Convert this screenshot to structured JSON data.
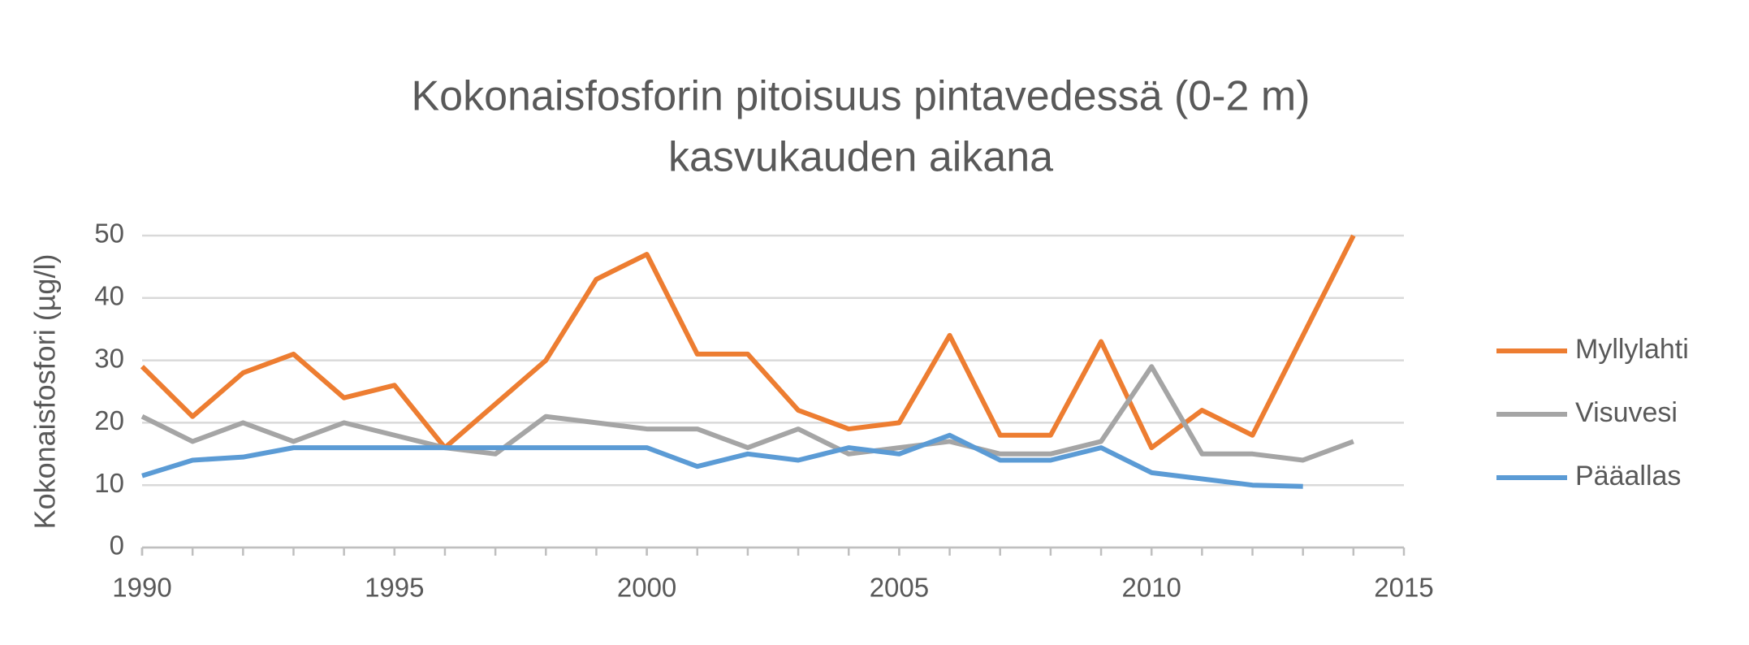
{
  "chart_data": {
    "type": "line",
    "title": [
      "Kokonaisfosforin pitoisuus pintavedessä (0-2 m)",
      "kasvukauden aikana"
    ],
    "y_label": "Kokonaisfosfori (µg/l)",
    "x": [
      1990,
      1991,
      1992,
      1993,
      1994,
      1995,
      1996,
      1997,
      1998,
      1999,
      2000,
      2001,
      2002,
      2003,
      2004,
      2005,
      2006,
      2007,
      2008,
      2009,
      2010,
      2011,
      2012,
      2013,
      2014
    ],
    "series": [
      {
        "name": "Myllylahti",
        "color": "#ed7d31",
        "values": [
          29,
          21,
          28,
          31,
          24,
          26,
          16,
          23,
          30,
          43,
          47,
          31,
          31,
          22,
          19,
          20,
          34,
          18,
          18,
          33,
          16,
          22,
          18,
          34,
          50
        ]
      },
      {
        "name": "Visuvesi",
        "color": "#a5a5a5",
        "values": [
          21,
          17,
          20,
          17,
          20,
          18,
          16,
          15,
          21,
          20,
          19,
          19,
          16,
          19,
          15,
          16,
          17,
          15,
          15,
          17,
          29,
          15,
          15,
          14,
          17
        ]
      },
      {
        "name": "Pääallas",
        "color": "#5b9bd5",
        "values": [
          11.5,
          14,
          14.5,
          16,
          16,
          16,
          16,
          16,
          16,
          16,
          16,
          13,
          15,
          14,
          16,
          15,
          18,
          14,
          14,
          16,
          12,
          11,
          10,
          9.8,
          null
        ]
      }
    ],
    "xlim": [
      1990,
      2015
    ],
    "xticks": [
      1990,
      1995,
      2000,
      2005,
      2010,
      2015
    ],
    "ylim": [
      0,
      50
    ],
    "yticks": [
      0,
      10,
      20,
      30,
      40,
      50
    ],
    "grid": true,
    "legend": "right"
  }
}
